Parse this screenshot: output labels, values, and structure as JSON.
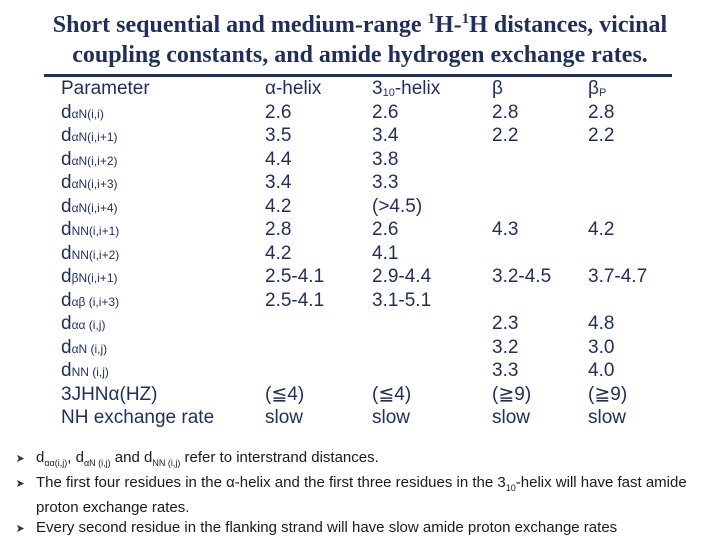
{
  "title": {
    "line1_a": "Short sequential and medium-range ",
    "line1_sup1": "1",
    "line1_b": "H-",
    "line1_sup2": "1",
    "line1_c": "H distances, vicinal",
    "line2": "coupling constants, and amide hydrogen exchange rates."
  },
  "table": {
    "header": [
      "Parameter",
      "α-helix",
      "310-helix",
      "β",
      "βP"
    ],
    "rows": [
      {
        "param_main": "d",
        "param_sub": "αN(i,i)",
        "c2": "2.6",
        "c3": "2.6",
        "c4": "2.8",
        "c5": "2.8"
      },
      {
        "param_main": "d",
        "param_sub": "αN(i,i+1)",
        "c2": "3.5",
        "c3": "3.4",
        "c4": "2.2",
        "c5": "2.2"
      },
      {
        "param_main": "d",
        "param_sub": "αN(i,i+2)",
        "c2": "4.4",
        "c3": "3.8",
        "c4": "",
        "c5": ""
      },
      {
        "param_main": "d",
        "param_sub": "αN(i,i+3)",
        "c2": "3.4",
        "c3": "3.3",
        "c4": "",
        "c5": ""
      },
      {
        "param_main": "d",
        "param_sub": "αN(i,i+4)",
        "c2": "4.2",
        "c3": "(>4.5)",
        "c4": "",
        "c5": ""
      },
      {
        "param_main": "d",
        "param_sub": "NN(i,i+1)",
        "c2": "2.8",
        "c3": "2.6",
        "c4": "4.3",
        "c5": "4.2"
      },
      {
        "param_main": "d",
        "param_sub": "NN(i,i+2)",
        "c2": "4.2",
        "c3": "4.1",
        "c4": "",
        "c5": ""
      },
      {
        "param_main": "d",
        "param_sub": "βN(i,i+1)",
        "c2": "2.5-4.1",
        "c3": "2.9-4.4",
        "c4": "3.2-4.5",
        "c5": "3.7-4.7"
      },
      {
        "param_main": "d",
        "param_sub": "αβ (i,i+3)",
        "c2": "2.5-4.1",
        "c3": "3.1-5.1",
        "c4": "",
        "c5": ""
      },
      {
        "param_main": "d",
        "param_sub": "αα (i,j)",
        "c2": "",
        "c3": "",
        "c4": "2.3",
        "c5": "4.8"
      },
      {
        "param_main": "d",
        "param_sub": "αN (i,j)",
        "c2": "",
        "c3": "",
        "c4": "3.2",
        "c5": "3.0"
      },
      {
        "param_main": "d",
        "param_sub": "NN (i,j)",
        "c2": "",
        "c3": "",
        "c4": "3.3",
        "c5": "4.0"
      },
      {
        "param_main": "3JHNα(HZ)",
        "param_sub": "",
        "c2": "(≦4)",
        "c3": "(≦4)",
        "c4": "(≧9)",
        "c5": "(≧9)"
      },
      {
        "param_main": "NH exchange rate",
        "param_sub": "",
        "c2": "slow",
        "c3": "slow",
        "c4": "slow",
        "c5": "slow"
      }
    ]
  },
  "notes": {
    "note1_a": "d",
    "note1_sub1": "αα(i,j)",
    "note1_b": ", d",
    "note1_sub2": "αN (i,j)",
    "note1_c": " and d",
    "note1_sub3": "NN (i,j)",
    "note1_d": " refer to interstrand distances.",
    "note2_a": "The first four residues in the α-helix and the first three residues in the 3",
    "note2_sub": "10",
    "note2_b": "-helix will  have fast amide proton exchange rates.",
    "note3": "Every second residue in the flanking strand will have slow amide proton exchange rates"
  }
}
